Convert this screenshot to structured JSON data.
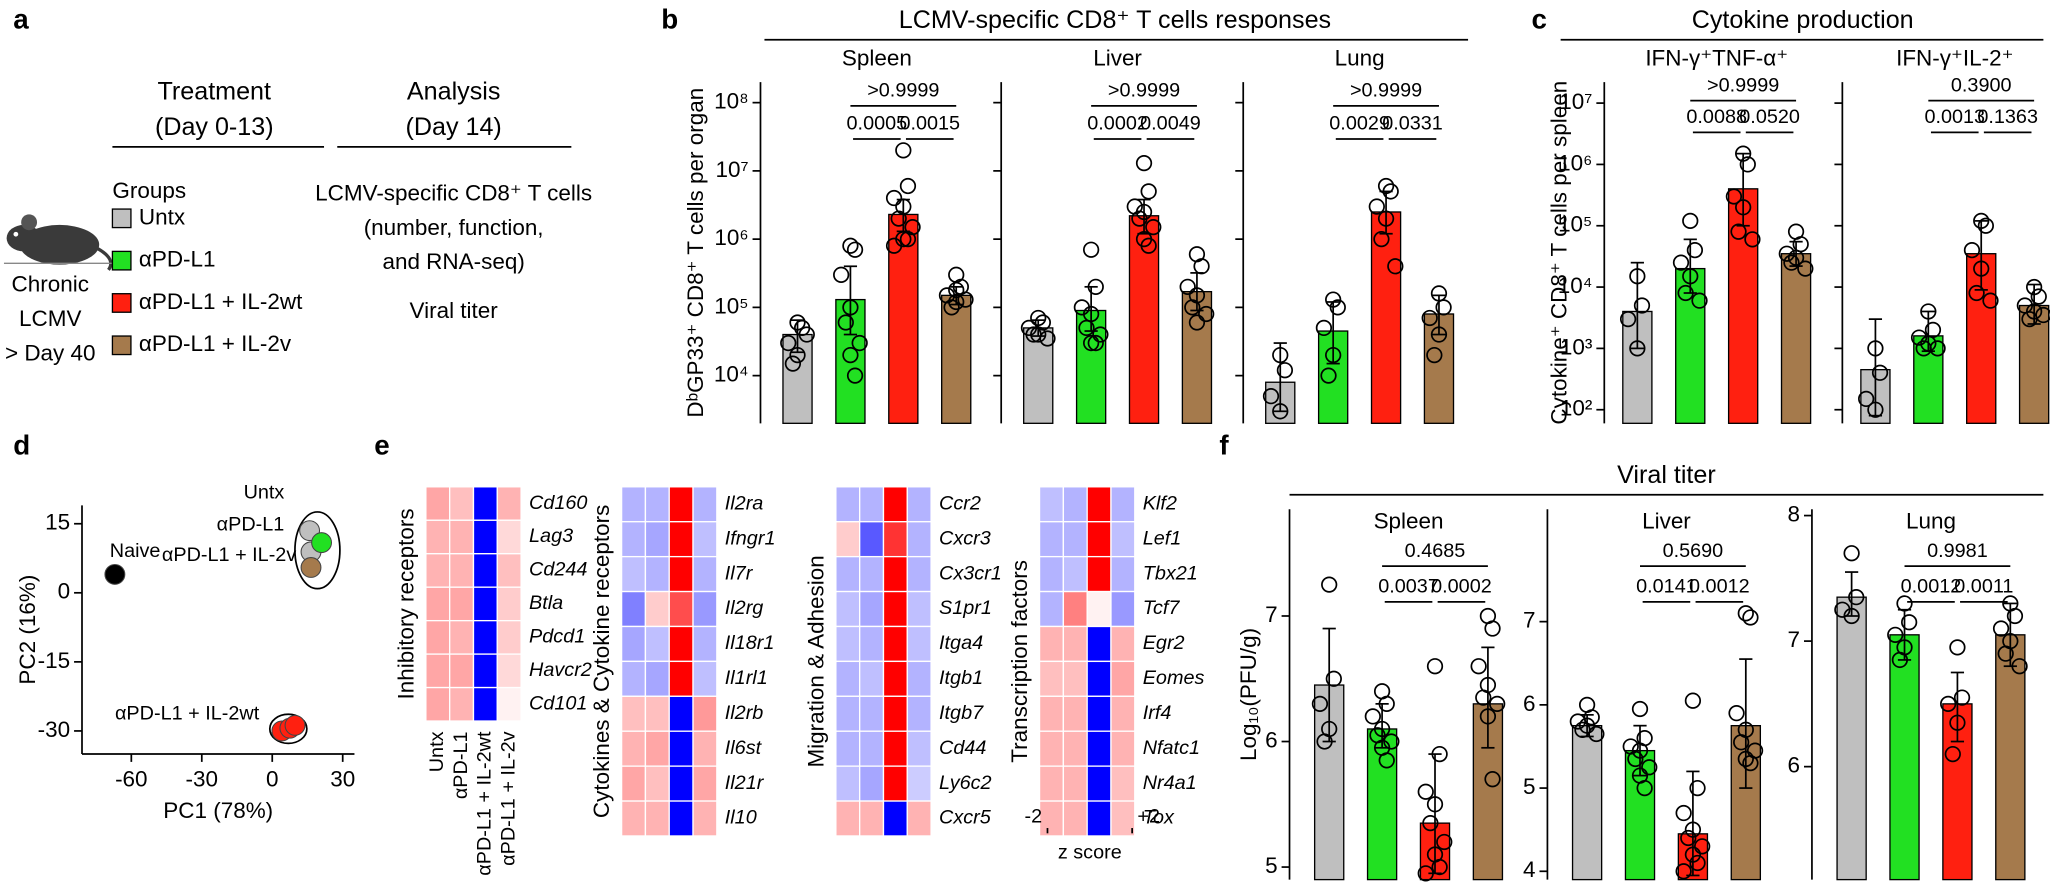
{
  "panel_a": {
    "label": "a",
    "treatment": [
      "Treatment",
      "(Day 0-13)"
    ],
    "analysis": [
      "Analysis",
      "(Day 14)"
    ],
    "mouse_label": [
      "Chronic",
      "LCMV",
      "> Day 40"
    ],
    "groups_title": "Groups",
    "groups": [
      {
        "name": "Untx",
        "color": "#bfbfbf"
      },
      {
        "name": "αPD-L1",
        "color": "#22e022"
      },
      {
        "name": "αPD-L1 + IL-2wt",
        "color": "#ff2010"
      },
      {
        "name": "αPD-L1 + IL-2v",
        "color": "#a57a4c"
      }
    ],
    "analysis_items": [
      "LCMV-specific CD8⁺ T cells",
      "(number, function,",
      "and RNA-seq)",
      "Viral titer"
    ]
  },
  "panel_b": {
    "label": "b",
    "title": "LCMV-specific CD8⁺ T cells responses",
    "ylabel": "DᵇGP33⁺ CD8⁺ T cells per organ",
    "log": true,
    "ylim": [
      2000,
      200000000
    ],
    "yticks": [
      {
        "value": 10000,
        "label": "10⁴"
      },
      {
        "value": 100000,
        "label": "10⁵"
      },
      {
        "value": 1000000,
        "label": "10⁶"
      },
      {
        "value": 10000000,
        "label": "10⁷"
      },
      {
        "value": 100000000,
        "label": "10⁸"
      }
    ],
    "subpanels": [
      {
        "title": "Spleen",
        "values": [
          40000,
          130000,
          2300000,
          150000
        ],
        "error_low": [
          22000,
          40000,
          1300000,
          110000
        ],
        "error_high": [
          65000,
          400000,
          3800000,
          200000
        ],
        "points": [
          [
            60000,
            50000,
            30000,
            20000,
            15000,
            40000
          ],
          [
            800000,
            700000,
            300000,
            100000,
            60000,
            30000,
            20000,
            10000
          ],
          [
            20000000,
            6000000,
            4000000,
            3000000,
            2000000,
            1500000,
            1000000,
            1000000,
            800000
          ],
          [
            300000,
            200000,
            150000,
            120000,
            100000,
            130000,
            180000
          ]
        ],
        "p_values": [
          "0.0005",
          "0.0015",
          ">0.9999"
        ]
      },
      {
        "title": "Liver",
        "values": [
          50000,
          90000,
          2200000,
          170000
        ],
        "error_low": [
          38000,
          45000,
          1200000,
          90000
        ],
        "error_high": [
          65000,
          200000,
          3800000,
          320000
        ],
        "points": [
          [
            70000,
            60000,
            50000,
            40000,
            40000,
            35000
          ],
          [
            700000,
            200000,
            100000,
            80000,
            50000,
            40000,
            30000,
            30000
          ],
          [
            13000000,
            5000000,
            3000000,
            2500000,
            2000000,
            1500000,
            1000000,
            800000
          ],
          [
            600000,
            400000,
            200000,
            150000,
            100000,
            80000,
            60000
          ]
        ],
        "p_values": [
          "0.0002",
          "0.0049",
          ">0.9999"
        ]
      },
      {
        "title": "Lung",
        "values": [
          8000,
          45000,
          2500000,
          80000
        ],
        "error_low": [
          3000,
          15000,
          1200000,
          40000
        ],
        "error_high": [
          30000,
          120000,
          5000000,
          150000
        ],
        "points": [
          [
            20000,
            12000,
            5000,
            3000
          ],
          [
            130000,
            100000,
            50000,
            20000,
            10000
          ],
          [
            6000000,
            5000000,
            3000000,
            2000000,
            1000000,
            400000
          ],
          [
            160000,
            100000,
            70000,
            40000,
            20000
          ]
        ],
        "p_values": [
          "0.0029",
          "0.0331",
          ">0.9999"
        ]
      }
    ]
  },
  "panel_c": {
    "label": "c",
    "title": "Cytokine production",
    "ylabel": "Cytokine⁺ CD8⁺ T cells per spleen",
    "log": true,
    "ylim": [
      60,
      22000000
    ],
    "yticks": [
      {
        "value": 100,
        "label": "10²"
      },
      {
        "value": 1000,
        "label": "10³"
      },
      {
        "value": 10000,
        "label": "10⁴"
      },
      {
        "value": 100000,
        "label": "10⁵"
      },
      {
        "value": 1000000,
        "label": "10⁶"
      },
      {
        "value": 10000000,
        "label": "10⁷"
      }
    ],
    "subpanels": [
      {
        "title": "IFN-γ⁺TNF-α⁺",
        "values": [
          4000,
          20000,
          400000,
          35000
        ],
        "error_low": [
          1000,
          8000,
          100000,
          22000
        ],
        "error_high": [
          25000,
          60000,
          1500000,
          55000
        ],
        "points": [
          [
            15000,
            5000,
            3000,
            1000
          ],
          [
            120000,
            40000,
            25000,
            15000,
            8000,
            6000
          ],
          [
            1500000,
            1000000,
            300000,
            200000,
            80000,
            60000
          ],
          [
            80000,
            50000,
            35000,
            30000,
            25000,
            20000
          ]
        ],
        "p_values": [
          "0.0088",
          "0.0520",
          ">0.9999"
        ]
      },
      {
        "title": "IFN-γ⁺IL-2⁺",
        "values": [
          450,
          1600,
          35000,
          5000
        ],
        "error_low": [
          80,
          900,
          9000,
          2500
        ],
        "error_high": [
          3000,
          4000,
          120000,
          11000
        ],
        "points": [
          [
            1000,
            400,
            150,
            100
          ],
          [
            4000,
            2000,
            1500,
            1200,
            1000,
            1000
          ],
          [
            120000,
            100000,
            40000,
            20000,
            8000,
            6000
          ],
          [
            10000,
            7000,
            5000,
            4000,
            3000,
            3500
          ]
        ],
        "p_values": [
          "0.0013",
          "0.1363",
          "0.3900"
        ]
      }
    ]
  },
  "panel_d": {
    "label": "d",
    "xlabel": "PC1 (78%)",
    "ylabel": "PC2 (16%)",
    "xlim": [
      -81,
      35
    ],
    "ylim": [
      -35,
      19
    ],
    "xticks": [
      -60,
      -30,
      0,
      30
    ],
    "yticks": [
      15,
      0,
      -15,
      -30
    ],
    "series": [
      {
        "name": "Naive",
        "color": "#000000",
        "x": [
          -67
        ],
        "y": [
          4
        ]
      },
      {
        "name": "Untx",
        "color": "#bfbfbf",
        "x": [
          15.9,
          16.5
        ],
        "y": [
          13.5,
          8.9
        ]
      },
      {
        "name": "αPD-L1",
        "color": "#22e022",
        "x": [
          21
        ],
        "y": [
          10.9
        ]
      },
      {
        "name": "αPD-L1 + IL-2v",
        "color": "#a57a4c",
        "x": [
          16.5
        ],
        "y": [
          5.5
        ]
      },
      {
        "name": "αPD-L1 + IL-2wt",
        "color": "#ff2010",
        "x": [
          4.1,
          7.5,
          9.7
        ],
        "y": [
          -30,
          -29.4,
          -28.8
        ]
      }
    ]
  },
  "panel_e": {
    "label": "e",
    "blocks": [
      {
        "title": "Inhibitory receptors",
        "genes": [
          "Cd160",
          "Lag3",
          "Cd244",
          "Btla",
          "Pdcd1",
          "Havcr2",
          "Cd101"
        ],
        "values": [
          [
            0.7,
            0.5,
            -2,
            0.6
          ],
          [
            0.6,
            0.6,
            -2,
            0.3
          ],
          [
            0.6,
            0.6,
            -2,
            0.5
          ],
          [
            0.7,
            0.7,
            -2,
            0.4
          ],
          [
            0.7,
            0.6,
            -2,
            0.4
          ],
          [
            0.7,
            0.7,
            -2,
            0.3
          ],
          [
            0.7,
            0.6,
            -2,
            0.1
          ]
        ]
      },
      {
        "title": "Cytokines & Cytokine receptors",
        "genes": [
          "Il2ra",
          "Ifngr1",
          "Il7r",
          "Il2rg",
          "Il18r1",
          "Il1rl1",
          "Il2rb",
          "Il6st",
          "Il21r",
          "Il10"
        ],
        "values": [
          [
            -0.6,
            -0.6,
            2,
            -0.6
          ],
          [
            -0.6,
            -0.7,
            2,
            -0.5
          ],
          [
            -0.5,
            -0.6,
            2,
            -0.6
          ],
          [
            -1.0,
            0.4,
            1.4,
            -0.8
          ],
          [
            -0.7,
            -0.5,
            2,
            -0.6
          ],
          [
            -0.6,
            -0.7,
            2,
            -0.5
          ],
          [
            0.5,
            0.5,
            -2,
            0.8
          ],
          [
            0.6,
            0.7,
            -2,
            0.6
          ],
          [
            0.7,
            0.5,
            -2,
            0.7
          ],
          [
            0.6,
            0.6,
            -2,
            0.6
          ]
        ]
      },
      {
        "title": "Migration & Adhesion",
        "genes": [
          "Ccr2",
          "Cxcr3",
          "Cx3cr1",
          "S1pr1",
          "Itga4",
          "Itgb1",
          "Itgb7",
          "Cd44",
          "Ly6c2",
          "Cxcr5"
        ],
        "values": [
          [
            -0.6,
            -0.6,
            2,
            -0.6
          ],
          [
            0.4,
            -1.3,
            1.6,
            -0.6
          ],
          [
            -0.6,
            -0.6,
            2,
            -0.6
          ],
          [
            -0.5,
            -0.7,
            2,
            -0.5
          ],
          [
            -0.5,
            -0.6,
            2,
            -0.5
          ],
          [
            -0.6,
            -0.5,
            2,
            -0.6
          ],
          [
            -0.6,
            -0.6,
            2,
            -0.6
          ],
          [
            -0.6,
            -0.6,
            2,
            -0.5
          ],
          [
            -0.5,
            -0.7,
            2,
            -0.4
          ],
          [
            0.6,
            0.6,
            -2,
            0.6
          ]
        ]
      },
      {
        "title": "Transcription factors",
        "genes": [
          "Klf2",
          "Lef1",
          "Tbx21",
          "Tcf7",
          "Egr2",
          "Eomes",
          "Irf4",
          "Nfatc1",
          "Nr4a1",
          "Tox"
        ],
        "values": [
          [
            -0.5,
            -0.6,
            2,
            -0.6
          ],
          [
            -0.6,
            -0.6,
            2,
            -0.5
          ],
          [
            -0.6,
            -0.5,
            2,
            -0.6
          ],
          [
            -0.6,
            1.0,
            0.1,
            -0.8
          ],
          [
            0.6,
            0.6,
            -2,
            0.6
          ],
          [
            0.5,
            0.5,
            -2,
            0.7
          ],
          [
            0.6,
            0.6,
            -2,
            0.6
          ],
          [
            0.6,
            0.6,
            -2,
            0.6
          ],
          [
            0.6,
            0.6,
            -2,
            0.5
          ],
          [
            0.6,
            0.6,
            -2,
            0.5
          ]
        ]
      }
    ],
    "scale": {
      "ticks": [
        {
          "value": -2,
          "label": "-2"
        },
        {
          "value": 2,
          "label": "+2"
        }
      ],
      "label": "z score"
    }
  },
  "panel_f": {
    "label": "f",
    "title": "Viral titer",
    "ylabel": "Log₁₀(PFU/g)",
    "log": false,
    "subpanels": [
      {
        "title": "Spleen",
        "ylim": [
          4.9,
          7.85
        ],
        "yticks": [
          5,
          6,
          7
        ],
        "values": [
          6.45,
          6.1,
          5.35,
          6.3
        ],
        "error_low": [
          6.0,
          5.95,
          4.95,
          5.95
        ],
        "error_high": [
          6.9,
          6.3,
          5.9,
          6.75
        ],
        "points": [
          [
            7.25,
            6.5,
            6.3,
            6.1,
            6.0
          ],
          [
            6.4,
            6.3,
            6.2,
            6.1,
            6.05,
            6.0,
            5.95,
            5.85
          ],
          [
            6.6,
            5.9,
            5.6,
            5.5,
            5.35,
            5.2,
            5.1,
            5.0,
            4.95
          ],
          [
            7.0,
            6.9,
            6.6,
            6.45,
            6.35,
            6.3,
            6.2,
            5.7
          ]
        ],
        "p_values": [
          "0.0037",
          "0.0002",
          "0.4685"
        ]
      },
      {
        "title": "Liver",
        "ylim": [
          3.9,
          8.35
        ],
        "yticks": [
          4,
          5,
          6,
          7
        ],
        "values": [
          5.75,
          5.45,
          4.45,
          5.75
        ],
        "error_low": [
          5.62,
          5.15,
          3.95,
          5.0
        ],
        "error_high": [
          5.88,
          5.75,
          5.2,
          6.55
        ],
        "points": [
          [
            6.0,
            5.85,
            5.8,
            5.75,
            5.7,
            5.65
          ],
          [
            5.95,
            5.6,
            5.5,
            5.45,
            5.35,
            5.25,
            5.15,
            5.0
          ],
          [
            6.05,
            5.0,
            4.7,
            4.5,
            4.4,
            4.3,
            4.2,
            4.1,
            4.0
          ],
          [
            7.1,
            7.05,
            5.9,
            5.7,
            5.55,
            5.45,
            5.35,
            5.3
          ]
        ],
        "p_values": [
          "0.0141",
          "0.0012",
          "0.5690"
        ]
      },
      {
        "title": "Lung",
        "ylim": [
          5.1,
          8.05
        ],
        "yticks": [
          6,
          7,
          8
        ],
        "values": [
          7.35,
          7.05,
          6.5,
          7.05
        ],
        "error_low": [
          7.2,
          6.85,
          6.2,
          6.8
        ],
        "error_high": [
          7.55,
          7.25,
          6.75,
          7.3
        ],
        "points": [
          [
            7.7,
            7.35,
            7.25,
            7.2
          ],
          [
            7.3,
            7.15,
            7.05,
            6.95,
            6.85
          ],
          [
            6.95,
            6.55,
            6.5,
            6.35,
            6.1
          ],
          [
            7.3,
            7.2,
            7.1,
            7.0,
            6.9,
            6.8
          ]
        ],
        "p_values": [
          "0.0012",
          "0.0011",
          "0.9981"
        ]
      }
    ]
  }
}
